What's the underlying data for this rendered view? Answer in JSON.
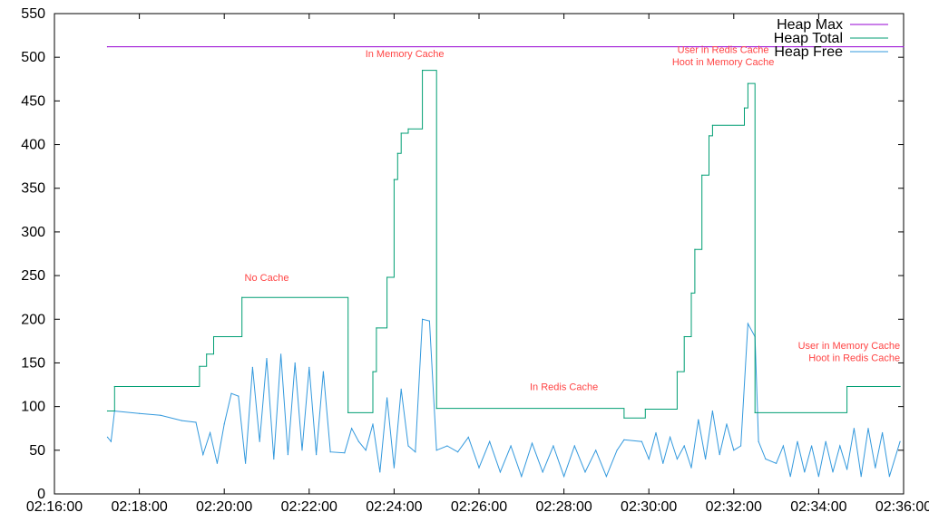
{
  "chart_data": {
    "type": "line",
    "title": "",
    "xlabel": "",
    "ylabel": "",
    "xlim": [
      "02:16:00",
      "02:36:00"
    ],
    "ylim": [
      0,
      550
    ],
    "x_ticks": [
      "02:16:00",
      "02:18:00",
      "02:20:00",
      "02:22:00",
      "02:24:00",
      "02:26:00",
      "02:28:00",
      "02:30:00",
      "02:32:00",
      "02:34:00",
      "02:36:00"
    ],
    "y_ticks": [
      0,
      50,
      100,
      150,
      200,
      250,
      300,
      350,
      400,
      450,
      500,
      550
    ],
    "grid": false,
    "legend_position": "top-right",
    "series": [
      {
        "name": "Heap Max",
        "color": "#9400d3",
        "style": "step",
        "points": [
          [
            "02:17:15",
            512
          ],
          [
            "02:36:00",
            512
          ]
        ]
      },
      {
        "name": "Heap Total",
        "color": "#009e73",
        "style": "step",
        "points": [
          [
            "02:17:15",
            95
          ],
          [
            "02:17:25",
            123
          ],
          [
            "02:19:25",
            146
          ],
          [
            "02:19:35",
            160
          ],
          [
            "02:19:45",
            180
          ],
          [
            "02:20:25",
            225
          ],
          [
            "02:22:55",
            93
          ],
          [
            "02:23:30",
            140
          ],
          [
            "02:23:35",
            190
          ],
          [
            "02:23:50",
            248
          ],
          [
            "02:24:00",
            360
          ],
          [
            "02:24:05",
            390
          ],
          [
            "02:24:10",
            413
          ],
          [
            "02:24:20",
            418
          ],
          [
            "02:24:40",
            485
          ],
          [
            "02:25:00",
            98
          ],
          [
            "02:29:25",
            87
          ],
          [
            "02:29:55",
            97
          ],
          [
            "02:30:40",
            140
          ],
          [
            "02:30:50",
            180
          ],
          [
            "02:31:00",
            230
          ],
          [
            "02:31:05",
            280
          ],
          [
            "02:31:15",
            365
          ],
          [
            "02:31:25",
            410
          ],
          [
            "02:31:30",
            422
          ],
          [
            "02:32:15",
            442
          ],
          [
            "02:32:20",
            470
          ],
          [
            "02:32:30",
            93
          ],
          [
            "02:34:40",
            123
          ],
          [
            "02:35:55",
            123
          ]
        ]
      },
      {
        "name": "Heap Free",
        "color": "#3399dd",
        "style": "line",
        "points": [
          [
            "02:17:15",
            65
          ],
          [
            "02:17:20",
            60
          ],
          [
            "02:17:25",
            95
          ],
          [
            "02:18:00",
            92
          ],
          [
            "02:18:30",
            90
          ],
          [
            "02:19:00",
            84
          ],
          [
            "02:19:20",
            82
          ],
          [
            "02:19:30",
            45
          ],
          [
            "02:19:40",
            70
          ],
          [
            "02:19:50",
            35
          ],
          [
            "02:20:00",
            80
          ],
          [
            "02:20:10",
            115
          ],
          [
            "02:20:20",
            112
          ],
          [
            "02:20:30",
            35
          ],
          [
            "02:20:40",
            145
          ],
          [
            "02:20:50",
            60
          ],
          [
            "02:21:00",
            155
          ],
          [
            "02:21:10",
            40
          ],
          [
            "02:21:20",
            160
          ],
          [
            "02:21:30",
            45
          ],
          [
            "02:21:40",
            150
          ],
          [
            "02:21:50",
            50
          ],
          [
            "02:22:00",
            145
          ],
          [
            "02:22:10",
            45
          ],
          [
            "02:22:20",
            140
          ],
          [
            "02:22:30",
            48
          ],
          [
            "02:22:50",
            47
          ],
          [
            "02:23:00",
            75
          ],
          [
            "02:23:10",
            60
          ],
          [
            "02:23:20",
            50
          ],
          [
            "02:23:30",
            80
          ],
          [
            "02:23:40",
            25
          ],
          [
            "02:23:50",
            110
          ],
          [
            "02:24:00",
            30
          ],
          [
            "02:24:10",
            120
          ],
          [
            "02:24:20",
            55
          ],
          [
            "02:24:30",
            48
          ],
          [
            "02:24:40",
            200
          ],
          [
            "02:24:50",
            198
          ],
          [
            "02:25:00",
            50
          ],
          [
            "02:25:15",
            55
          ],
          [
            "02:25:30",
            48
          ],
          [
            "02:25:45",
            65
          ],
          [
            "02:26:00",
            30
          ],
          [
            "02:26:15",
            60
          ],
          [
            "02:26:30",
            25
          ],
          [
            "02:26:45",
            55
          ],
          [
            "02:27:00",
            20
          ],
          [
            "02:27:15",
            58
          ],
          [
            "02:27:30",
            25
          ],
          [
            "02:27:45",
            55
          ],
          [
            "02:28:00",
            20
          ],
          [
            "02:28:15",
            55
          ],
          [
            "02:28:30",
            25
          ],
          [
            "02:28:45",
            50
          ],
          [
            "02:29:00",
            20
          ],
          [
            "02:29:15",
            50
          ],
          [
            "02:29:25",
            62
          ],
          [
            "02:29:50",
            60
          ],
          [
            "02:30:00",
            40
          ],
          [
            "02:30:10",
            70
          ],
          [
            "02:30:20",
            35
          ],
          [
            "02:30:30",
            65
          ],
          [
            "02:30:40",
            40
          ],
          [
            "02:30:50",
            55
          ],
          [
            "02:31:00",
            30
          ],
          [
            "02:31:10",
            85
          ],
          [
            "02:31:20",
            40
          ],
          [
            "02:31:30",
            95
          ],
          [
            "02:31:40",
            45
          ],
          [
            "02:31:50",
            80
          ],
          [
            "02:32:00",
            50
          ],
          [
            "02:32:10",
            55
          ],
          [
            "02:32:20",
            195
          ],
          [
            "02:32:30",
            180
          ],
          [
            "02:32:35",
            60
          ],
          [
            "02:32:45",
            40
          ],
          [
            "02:33:00",
            35
          ],
          [
            "02:33:10",
            55
          ],
          [
            "02:33:20",
            20
          ],
          [
            "02:33:30",
            60
          ],
          [
            "02:33:40",
            25
          ],
          [
            "02:33:50",
            55
          ],
          [
            "02:34:00",
            20
          ],
          [
            "02:34:10",
            60
          ],
          [
            "02:34:20",
            25
          ],
          [
            "02:34:30",
            55
          ],
          [
            "02:34:40",
            28
          ],
          [
            "02:34:50",
            75
          ],
          [
            "02:35:00",
            20
          ],
          [
            "02:35:10",
            75
          ],
          [
            "02:35:20",
            30
          ],
          [
            "02:35:30",
            70
          ],
          [
            "02:35:40",
            20
          ],
          [
            "02:35:55",
            60
          ]
        ]
      }
    ],
    "annotations": [
      {
        "text": "No Cache",
        "x": "02:21:00",
        "y": 244,
        "color": "#ff4444"
      },
      {
        "text": "In Memory Cache",
        "x": "02:24:15",
        "y": 500,
        "color": "#ff4444"
      },
      {
        "text": "In Redis Cache",
        "x": "02:28:00",
        "y": 119,
        "color": "#ff4444"
      },
      {
        "text": "User in Redis Cache",
        "x": "02:31:45",
        "y": 505,
        "color": "#ff4444"
      },
      {
        "text": "Hoot in Memory Cache",
        "x": "02:31:45",
        "y": 491,
        "color": "#ff4444"
      },
      {
        "text": "User in Memory Cache",
        "x": "02:35:55",
        "y": 166,
        "color": "#ff4444",
        "anchor": "end"
      },
      {
        "text": "Hoot in Redis Cache",
        "x": "02:35:55",
        "y": 152,
        "color": "#ff4444",
        "anchor": "end"
      }
    ]
  }
}
